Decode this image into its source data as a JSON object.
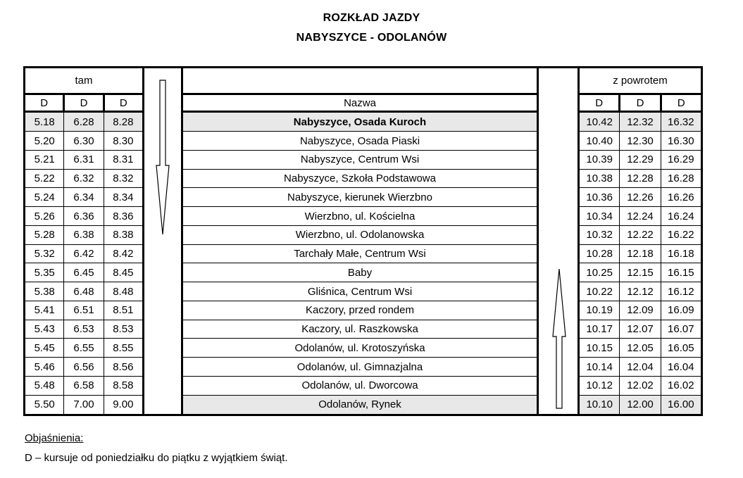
{
  "page": {
    "title_line1": "ROZKŁAD JAZDY",
    "title_line2": "NABYSZYCE - ODOLANÓW"
  },
  "timetable": {
    "outbound_header": "tam",
    "return_header": "z powrotem",
    "name_header": "Nazwa",
    "outbound_day_codes": [
      "D",
      "D",
      "D"
    ],
    "return_day_codes": [
      "D",
      "D",
      "D"
    ],
    "stops": [
      {
        "name": "Nabyszyce, Osada Kuroch",
        "outbound": [
          "5.18",
          "6.28",
          "8.28"
        ],
        "return": [
          "10.42",
          "12.32",
          "16.32"
        ],
        "bold": true,
        "hl_out": true,
        "hl_name": true,
        "hl_ret": true
      },
      {
        "name": "Nabyszyce, Osada Piaski",
        "outbound": [
          "5.20",
          "6.30",
          "8.30"
        ],
        "return": [
          "10.40",
          "12.30",
          "16.30"
        ],
        "bold": false,
        "hl_out": false,
        "hl_name": false,
        "hl_ret": false
      },
      {
        "name": "Nabyszyce, Centrum Wsi",
        "outbound": [
          "5.21",
          "6.31",
          "8.31"
        ],
        "return": [
          "10.39",
          "12.29",
          "16.29"
        ],
        "bold": false,
        "hl_out": false,
        "hl_name": false,
        "hl_ret": false
      },
      {
        "name": "Nabyszyce, Szkoła Podstawowa",
        "outbound": [
          "5.22",
          "6.32",
          "8.32"
        ],
        "return": [
          "10.38",
          "12.28",
          "16.28"
        ],
        "bold": false,
        "hl_out": false,
        "hl_name": false,
        "hl_ret": false
      },
      {
        "name": "Nabyszyce, kierunek Wierzbno",
        "outbound": [
          "5.24",
          "6.34",
          "8.34"
        ],
        "return": [
          "10.36",
          "12.26",
          "16.26"
        ],
        "bold": false,
        "hl_out": false,
        "hl_name": false,
        "hl_ret": false
      },
      {
        "name": "Wierzbno, ul. Kościelna",
        "outbound": [
          "5.26",
          "6.36",
          "8.36"
        ],
        "return": [
          "10.34",
          "12.24",
          "16.24"
        ],
        "bold": false,
        "hl_out": false,
        "hl_name": false,
        "hl_ret": false
      },
      {
        "name": "Wierzbno, ul. Odolanowska",
        "outbound": [
          "5.28",
          "6.38",
          "8.38"
        ],
        "return": [
          "10.32",
          "12.22",
          "16.22"
        ],
        "bold": false,
        "hl_out": false,
        "hl_name": false,
        "hl_ret": false
      },
      {
        "name": "Tarchały Małe, Centrum Wsi",
        "outbound": [
          "5.32",
          "6.42",
          "8.42"
        ],
        "return": [
          "10.28",
          "12.18",
          "16.18"
        ],
        "bold": false,
        "hl_out": false,
        "hl_name": false,
        "hl_ret": false
      },
      {
        "name": "Baby",
        "outbound": [
          "5.35",
          "6.45",
          "8.45"
        ],
        "return": [
          "10.25",
          "12.15",
          "16.15"
        ],
        "bold": false,
        "hl_out": false,
        "hl_name": false,
        "hl_ret": false
      },
      {
        "name": "Gliśnica, Centrum Wsi",
        "outbound": [
          "5.38",
          "6.48",
          "8.48"
        ],
        "return": [
          "10.22",
          "12.12",
          "16.12"
        ],
        "bold": false,
        "hl_out": false,
        "hl_name": false,
        "hl_ret": false
      },
      {
        "name": "Kaczory, przed rondem",
        "outbound": [
          "5.41",
          "6.51",
          "8.51"
        ],
        "return": [
          "10.19",
          "12.09",
          "16.09"
        ],
        "bold": false,
        "hl_out": false,
        "hl_name": false,
        "hl_ret": false
      },
      {
        "name": "Kaczory, ul. Raszkowska",
        "outbound": [
          "5.43",
          "6.53",
          "8.53"
        ],
        "return": [
          "10.17",
          "12.07",
          "16.07"
        ],
        "bold": false,
        "hl_out": false,
        "hl_name": false,
        "hl_ret": false
      },
      {
        "name": "Odolanów, ul. Krotoszyńska",
        "outbound": [
          "5.45",
          "6.55",
          "8.55"
        ],
        "return": [
          "10.15",
          "12.05",
          "16.05"
        ],
        "bold": false,
        "hl_out": false,
        "hl_name": false,
        "hl_ret": false
      },
      {
        "name": "Odolanów, ul. Gimnazjalna",
        "outbound": [
          "5.46",
          "6.56",
          "8.56"
        ],
        "return": [
          "10.14",
          "12.04",
          "16.04"
        ],
        "bold": false,
        "hl_out": false,
        "hl_name": false,
        "hl_ret": false
      },
      {
        "name": "Odolanów, ul. Dworcowa",
        "outbound": [
          "5.48",
          "6.58",
          "8.58"
        ],
        "return": [
          "10.12",
          "12.02",
          "16.02"
        ],
        "bold": false,
        "hl_out": false,
        "hl_name": false,
        "hl_ret": false
      },
      {
        "name": "Odolanów, Rynek",
        "outbound": [
          "5.50",
          "7.00",
          "9.00"
        ],
        "return": [
          "10.10",
          "12.00",
          "16.00"
        ],
        "bold": false,
        "hl_out": false,
        "hl_name": true,
        "hl_ret": true
      }
    ]
  },
  "icons": {
    "outbound_direction": "down-arrow-icon",
    "return_direction": "up-arrow-icon"
  },
  "legend": {
    "heading": "Objaśnienia:",
    "note_d": "D – kursuje od poniedziałku do piątku z wyjątkiem świąt."
  },
  "colors": {
    "border": "#000000",
    "highlight_row": "#e8e8e8",
    "background": "#ffffff",
    "text": "#000000"
  }
}
